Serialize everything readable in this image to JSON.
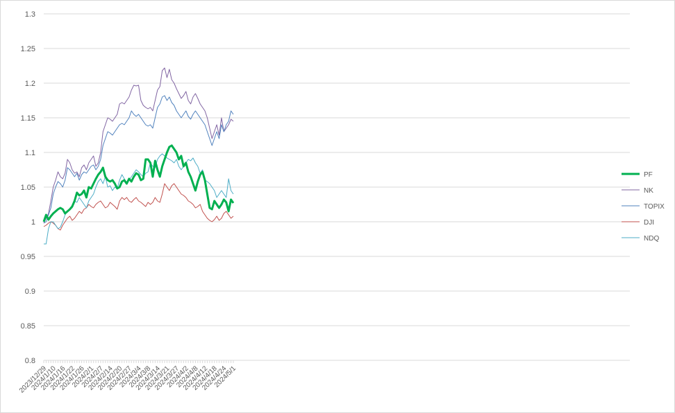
{
  "chart_data": {
    "type": "line",
    "title": "",
    "xlabel": "",
    "ylabel": "",
    "ylim": [
      0.8,
      1.3
    ],
    "yticks": [
      "0.8",
      "0.85",
      "0.9",
      "0.95",
      "1",
      "1.05",
      "1.1",
      "1.15",
      "1.2",
      "1.25",
      "1.3"
    ],
    "grid": true,
    "legend_position": "right",
    "x_tick_labels": [
      "2023/12/29",
      "2024/1/10",
      "2024/1/16",
      "2024/1/22",
      "2024/1/26",
      "2024/2/1",
      "2024/2/7",
      "2024/2/14",
      "2024/2/20",
      "2024/2/27",
      "2024/3/4",
      "2024/3/8",
      "2024/3/14",
      "2024/3/21",
      "2024/3/27",
      "2024/4/2",
      "2024/4/8",
      "2024/4/12",
      "2024/4/18",
      "2024/4/24",
      "2024/5/1"
    ],
    "total_points": 81,
    "series": [
      {
        "name": "PF",
        "color": "#00b050",
        "width": 3,
        "values": [
          1.0,
          1.01,
          1.003,
          1.008,
          1.012,
          1.015,
          1.018,
          1.02,
          1.018,
          1.012,
          1.015,
          1.018,
          1.022,
          1.03,
          1.042,
          1.038,
          1.04,
          1.045,
          1.035,
          1.05,
          1.048,
          1.055,
          1.062,
          1.068,
          1.072,
          1.078,
          1.065,
          1.06,
          1.058,
          1.06,
          1.055,
          1.048,
          1.05,
          1.058,
          1.06,
          1.055,
          1.062,
          1.058,
          1.065,
          1.07,
          1.068,
          1.06,
          1.062,
          1.09,
          1.09,
          1.085,
          1.065,
          1.088,
          1.075,
          1.065,
          1.08,
          1.09,
          1.1,
          1.108,
          1.11,
          1.105,
          1.1,
          1.09,
          1.095,
          1.08,
          1.085,
          1.072,
          1.065,
          1.055,
          1.045,
          1.058,
          1.068,
          1.072,
          1.06,
          1.04,
          1.02,
          1.018,
          1.03,
          1.025,
          1.02,
          1.025,
          1.032,
          1.028,
          1.015,
          1.032,
          1.027
        ]
      },
      {
        "name": "NK",
        "color": "#8064a2",
        "width": 1,
        "values": [
          0.998,
          1.005,
          1.012,
          1.03,
          1.05,
          1.06,
          1.072,
          1.065,
          1.062,
          1.07,
          1.09,
          1.085,
          1.075,
          1.07,
          1.072,
          1.065,
          1.078,
          1.082,
          1.075,
          1.085,
          1.09,
          1.095,
          1.08,
          1.085,
          1.1,
          1.13,
          1.14,
          1.15,
          1.148,
          1.145,
          1.15,
          1.155,
          1.17,
          1.172,
          1.17,
          1.175,
          1.18,
          1.19,
          1.197,
          1.196,
          1.197,
          1.175,
          1.168,
          1.165,
          1.163,
          1.165,
          1.16,
          1.175,
          1.19,
          1.195,
          1.218,
          1.222,
          1.208,
          1.22,
          1.205,
          1.2,
          1.192,
          1.185,
          1.178,
          1.182,
          1.188,
          1.175,
          1.17,
          1.18,
          1.185,
          1.178,
          1.17,
          1.165,
          1.16,
          1.15,
          1.135,
          1.12,
          1.13,
          1.14,
          1.125,
          1.15,
          1.13,
          1.135,
          1.14,
          1.148,
          1.145
        ]
      },
      {
        "name": "TOPIX",
        "color": "#4f81bd",
        "width": 1,
        "values": [
          0.998,
          1.0,
          1.01,
          1.02,
          1.04,
          1.05,
          1.058,
          1.055,
          1.05,
          1.06,
          1.078,
          1.075,
          1.07,
          1.065,
          1.07,
          1.06,
          1.068,
          1.072,
          1.07,
          1.075,
          1.08,
          1.082,
          1.075,
          1.08,
          1.09,
          1.11,
          1.12,
          1.13,
          1.128,
          1.125,
          1.13,
          1.135,
          1.14,
          1.142,
          1.14,
          1.145,
          1.15,
          1.16,
          1.155,
          1.152,
          1.155,
          1.15,
          1.145,
          1.14,
          1.138,
          1.14,
          1.135,
          1.15,
          1.165,
          1.17,
          1.18,
          1.182,
          1.175,
          1.18,
          1.172,
          1.168,
          1.16,
          1.155,
          1.15,
          1.155,
          1.16,
          1.152,
          1.148,
          1.155,
          1.16,
          1.155,
          1.15,
          1.145,
          1.14,
          1.13,
          1.12,
          1.11,
          1.12,
          1.13,
          1.12,
          1.14,
          1.13,
          1.14,
          1.145,
          1.16,
          1.155
        ]
      },
      {
        "name": "DJI",
        "color": "#c0504d",
        "width": 1,
        "values": [
          0.993,
          0.995,
          0.998,
          1.0,
          0.998,
          0.995,
          0.99,
          0.988,
          0.995,
          1.0,
          1.005,
          1.008,
          1.002,
          1.005,
          1.01,
          1.015,
          1.012,
          1.018,
          1.02,
          1.025,
          1.022,
          1.02,
          1.025,
          1.028,
          1.03,
          1.025,
          1.02,
          1.022,
          1.028,
          1.025,
          1.022,
          1.018,
          1.03,
          1.035,
          1.032,
          1.035,
          1.03,
          1.028,
          1.032,
          1.035,
          1.03,
          1.028,
          1.025,
          1.022,
          1.028,
          1.025,
          1.028,
          1.035,
          1.03,
          1.028,
          1.04,
          1.055,
          1.05,
          1.045,
          1.052,
          1.055,
          1.05,
          1.045,
          1.04,
          1.038,
          1.035,
          1.03,
          1.028,
          1.025,
          1.02,
          1.022,
          1.025,
          1.015,
          1.01,
          1.005,
          1.002,
          1.0,
          1.003,
          1.008,
          1.002,
          1.005,
          1.012,
          1.015,
          1.01,
          1.005,
          1.008
        ]
      },
      {
        "name": "NDQ",
        "color": "#4bacc6",
        "width": 1,
        "values": [
          0.968,
          0.968,
          0.99,
          1.0,
          1.0,
          0.995,
          0.99,
          0.992,
          1.0,
          1.01,
          1.015,
          1.018,
          1.02,
          1.03,
          1.028,
          1.035,
          1.03,
          1.025,
          1.02,
          1.03,
          1.035,
          1.04,
          1.05,
          1.058,
          1.062,
          1.055,
          1.065,
          1.05,
          1.052,
          1.045,
          1.05,
          1.048,
          1.06,
          1.068,
          1.062,
          1.055,
          1.06,
          1.065,
          1.07,
          1.075,
          1.072,
          1.068,
          1.065,
          1.07,
          1.072,
          1.085,
          1.08,
          1.078,
          1.09,
          1.095,
          1.098,
          1.095,
          1.092,
          1.09,
          1.088,
          1.085,
          1.09,
          1.08,
          1.075,
          1.08,
          1.085,
          1.09,
          1.088,
          1.092,
          1.085,
          1.08,
          1.07,
          1.075,
          1.06,
          1.058,
          1.055,
          1.05,
          1.045,
          1.035,
          1.04,
          1.045,
          1.04,
          1.035,
          1.062,
          1.045,
          1.04
        ]
      }
    ]
  }
}
